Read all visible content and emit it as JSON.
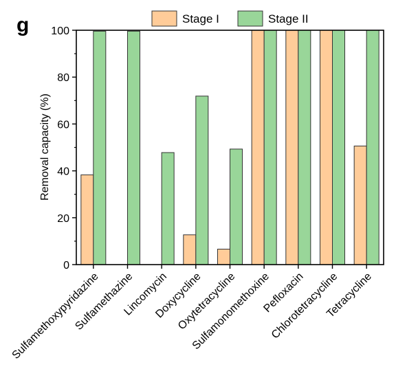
{
  "panel_label": "g",
  "chart_data": {
    "type": "bar",
    "title": "",
    "xlabel": "",
    "ylabel": "Removal capacity (%)",
    "ylim": [
      0,
      100
    ],
    "yticks": [
      0,
      20,
      40,
      60,
      80,
      100
    ],
    "grid": false,
    "legend_position": "top",
    "categories": [
      "Sulfamethoxypyridazine",
      "Sulfamethazine",
      "Lincomycin",
      "Doxycycline",
      "Oxytetracycline",
      "Sulfamonomethoxine",
      "Pefloxacin",
      "Chlorotetracycline",
      "Tetracycline"
    ],
    "series": [
      {
        "name": "Stage I",
        "color": "#FFCC99",
        "values": [
          38.3,
          0,
          0,
          12.7,
          6.6,
          100,
          100,
          100,
          50.6
        ]
      },
      {
        "name": "Stage II",
        "color": "#99D699",
        "values": [
          99.6,
          99.6,
          47.8,
          71.9,
          49.3,
          100,
          100,
          100,
          100
        ]
      }
    ]
  }
}
